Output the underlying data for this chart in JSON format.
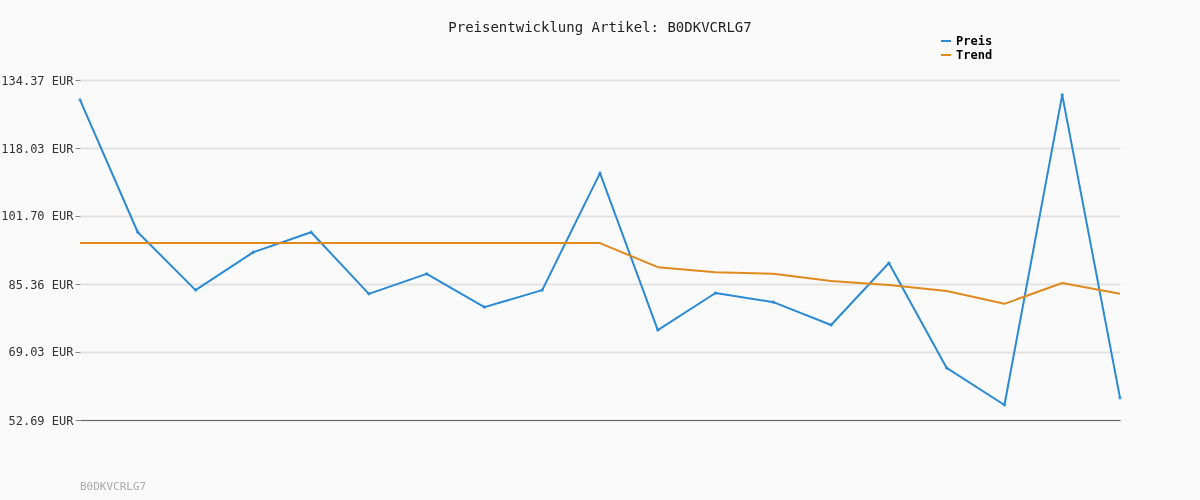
{
  "chart_data": {
    "type": "line",
    "title": "Preisentwicklung Artikel: B0DKVCRLG7",
    "categories": [
      null,
      null,
      null,
      null,
      null,
      null,
      null,
      null,
      null,
      null,
      null,
      null,
      null,
      null,
      null,
      null,
      null,
      null,
      null
    ],
    "series": [
      {
        "name": "Preis",
        "color": "#2a8ad4",
        "marker": "diamond",
        "values": [
          129.6,
          97.8,
          83.9,
          93.0,
          97.8,
          83.0,
          87.8,
          79.8,
          83.9,
          112.0,
          74.3,
          83.2,
          81.0,
          75.5,
          90.4,
          65.2,
          56.3,
          130.8,
          58.0
        ]
      },
      {
        "name": "Trend",
        "color": "#e08a1e",
        "marker": "none",
        "values": [
          95.2,
          95.2,
          95.2,
          95.2,
          95.2,
          95.2,
          95.2,
          95.2,
          95.2,
          95.2,
          89.4,
          88.2,
          87.8,
          86.1,
          85.1,
          83.7,
          80.6,
          85.6,
          83.0
        ]
      }
    ],
    "ylim": [
      52.69,
      134.37
    ],
    "yticks": [
      {
        "value": 52.69,
        "label": "52.69 EUR"
      },
      {
        "value": 69.03,
        "label": "69.03 EUR"
      },
      {
        "value": 85.36,
        "label": "85.36 EUR"
      },
      {
        "value": 101.7,
        "label": "101.70 EUR"
      },
      {
        "value": 118.03,
        "label": "118.03 EUR"
      },
      {
        "value": 134.37,
        "label": "134.37 EUR"
      }
    ],
    "grid": "y",
    "legend": "top right",
    "tick_labels": "y",
    "annotations": [
      "B0DKVCRLG7"
    ]
  }
}
